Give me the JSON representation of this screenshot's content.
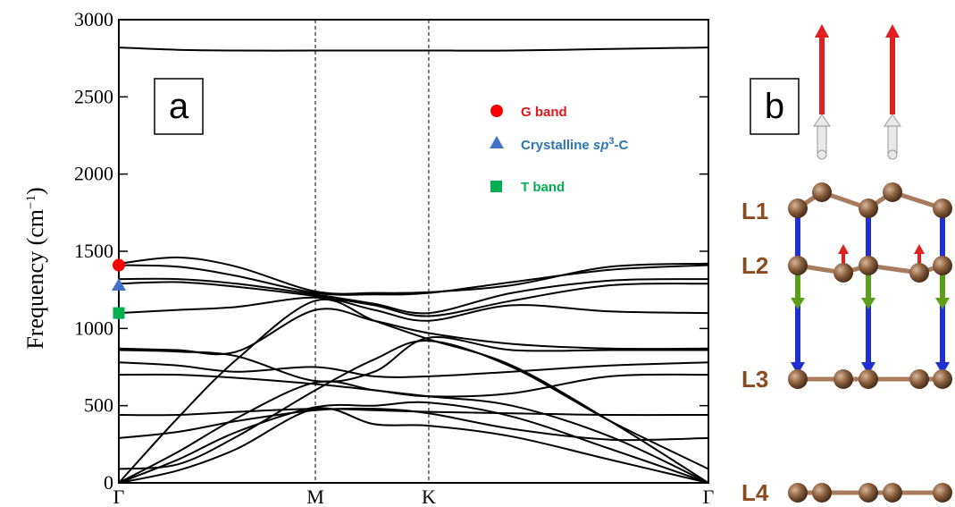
{
  "chart_data": {
    "type": "line",
    "title": "",
    "ylabel": "Frequency (cm",
    "ylabel_unit_sup": "−1",
    "ylabel_close": ")",
    "xlabel": "",
    "ylim": [
      0,
      3000
    ],
    "yticks": [
      "0",
      "500",
      "1000",
      "1500",
      "2000",
      "2500",
      "3000"
    ],
    "ytick_values": [
      0,
      500,
      1000,
      1500,
      2000,
      2500,
      3000
    ],
    "x_path_points": [
      "Γ",
      "M",
      "K",
      "Γ"
    ],
    "x_path_positions": [
      0,
      1,
      1.577,
      3.0
    ],
    "vertical_dashed_lines_at": [
      "M",
      "K"
    ],
    "line_color": "#000000",
    "bands": [
      {
        "x": [
          0,
          0.3,
          0.6,
          1.0,
          1.3,
          1.577,
          2.0,
          2.5,
          3.0
        ],
        "y": [
          2820,
          2805,
          2800,
          2800,
          2800,
          2800,
          2800,
          2810,
          2820
        ]
      },
      {
        "x": [
          0,
          0.3,
          0.6,
          1.0,
          1.3,
          1.577,
          2.0,
          2.5,
          3.0
        ],
        "y": [
          1420,
          1460,
          1400,
          1240,
          1230,
          1235,
          1280,
          1400,
          1420
        ]
      },
      {
        "x": [
          0,
          0.3,
          0.6,
          1.0,
          1.3,
          1.577,
          2.0,
          2.5,
          3.0
        ],
        "y": [
          1410,
          1400,
          1340,
          1230,
          1220,
          1230,
          1300,
          1380,
          1410
        ]
      },
      {
        "x": [
          0,
          0.3,
          0.6,
          1.0,
          1.3,
          1.577,
          2.0,
          2.5,
          3.0
        ],
        "y": [
          1320,
          1320,
          1290,
          1220,
          1160,
          1100,
          1230,
          1310,
          1320
        ]
      },
      {
        "x": [
          0,
          0.3,
          0.6,
          1.0,
          1.3,
          1.577,
          2.0,
          2.5,
          3.0
        ],
        "y": [
          1290,
          1300,
          1270,
          1210,
          1150,
          1080,
          1180,
          1280,
          1290
        ]
      },
      {
        "x": [
          0,
          0.3,
          0.6,
          1.0,
          1.3,
          1.577,
          2.0,
          2.5,
          3.0
        ],
        "y": [
          1100,
          1120,
          1140,
          1200,
          1120,
          1050,
          1150,
          1110,
          1100
        ]
      },
      {
        "x": [
          0,
          0.3,
          0.6,
          1.0,
          1.3,
          1.577,
          2.0,
          2.5,
          3.0
        ],
        "y": [
          870,
          860,
          850,
          1120,
          1050,
          970,
          900,
          870,
          870
        ]
      },
      {
        "x": [
          0,
          0.3,
          0.6,
          1.0,
          1.3,
          1.577,
          2.0,
          2.5,
          3.0
        ],
        "y": [
          860,
          850,
          820,
          660,
          720,
          940,
          860,
          860,
          860
        ]
      },
      {
        "x": [
          0,
          0.3,
          0.6,
          1.0,
          1.3,
          1.577,
          2.0,
          2.5,
          3.0
        ],
        "y": [
          780,
          760,
          720,
          750,
          690,
          690,
          720,
          760,
          780
        ]
      },
      {
        "x": [
          0,
          0.3,
          0.6,
          1.0,
          1.3,
          1.577,
          2.0,
          2.5,
          3.0
        ],
        "y": [
          700,
          700,
          680,
          640,
          600,
          560,
          580,
          690,
          700
        ]
      },
      {
        "x": [
          0,
          0.3,
          0.6,
          1.0,
          1.3,
          1.577,
          2.0,
          2.5,
          3.0
        ],
        "y": [
          440,
          440,
          460,
          480,
          470,
          460,
          450,
          440,
          440
        ]
      },
      {
        "x": [
          0,
          0.3,
          0.6,
          1.0,
          1.3,
          1.577,
          2.0,
          2.5,
          3.0
        ],
        "y": [
          290,
          330,
          400,
          470,
          480,
          450,
          350,
          280,
          290
        ]
      },
      {
        "x": [
          0,
          0.3,
          0.6,
          1.0,
          1.3,
          1.577,
          2.0,
          2.5,
          3.0
        ],
        "y": [
          90,
          120,
          300,
          600,
          800,
          920,
          750,
          400,
          90
        ]
      },
      {
        "x": [
          0,
          0.3,
          0.6,
          1.0,
          1.3,
          1.577,
          2.0,
          2.5,
          3.0
        ],
        "y": [
          0,
          200,
          420,
          650,
          600,
          560,
          500,
          300,
          0
        ]
      },
      {
        "x": [
          0,
          0.3,
          0.6,
          1.0,
          1.3,
          1.577,
          2.0,
          2.5,
          3.0
        ],
        "y": [
          0,
          150,
          330,
          490,
          500,
          520,
          430,
          220,
          0
        ]
      },
      {
        "x": [
          0,
          0.3,
          0.6,
          1.0,
          1.3,
          1.577,
          2.0,
          2.5,
          3.0
        ],
        "y": [
          0,
          80,
          220,
          480,
          380,
          370,
          300,
          150,
          0
        ]
      },
      {
        "x": [
          0,
          0.3,
          0.6,
          1.0,
          1.3,
          1.577,
          2.0,
          2.5,
          3.0
        ],
        "y": [
          0,
          420,
          800,
          1180,
          1050,
          930,
          760,
          400,
          0
        ]
      }
    ],
    "markers": [
      {
        "name": "G band",
        "shape": "circle",
        "color": "#ff0000",
        "x": 0,
        "y": 1410
      },
      {
        "name": "Crystalline sp3-C",
        "shape": "triangle",
        "color": "#4472c4",
        "x": 0,
        "y": 1280
      },
      {
        "name": "T band",
        "shape": "square",
        "color": "#00b050",
        "x": 0,
        "y": 1100
      }
    ],
    "legend": {
      "placement": "top-right",
      "entries": [
        {
          "label": "G band",
          "shape": "circle",
          "color": "#ff0000",
          "text_color": "#e0191e"
        },
        {
          "label_pre": "Crystalline ",
          "label_italic": "sp",
          "label_sup": "3",
          "label_post": "-C",
          "shape": "triangle",
          "color": "#4472c4",
          "text_color": "#2e75b6"
        },
        {
          "label": "T band",
          "shape": "square",
          "color": "#00b050",
          "text_color": "#00b050"
        }
      ]
    }
  },
  "panel_labels": {
    "a": "a",
    "b": "b"
  },
  "structure": {
    "layers": [
      "L1",
      "L2",
      "L3",
      "L4"
    ],
    "layer_label_color": "#8a4b1f",
    "atom_color": "#8b5e3c",
    "bond_color": "#a77c5e",
    "arrow_colors": {
      "large_up": "#e02020",
      "small_up": "#e02020",
      "white": "#e8e8e8",
      "blue": "#1f2fd0",
      "green": "#5a9e1a"
    }
  }
}
